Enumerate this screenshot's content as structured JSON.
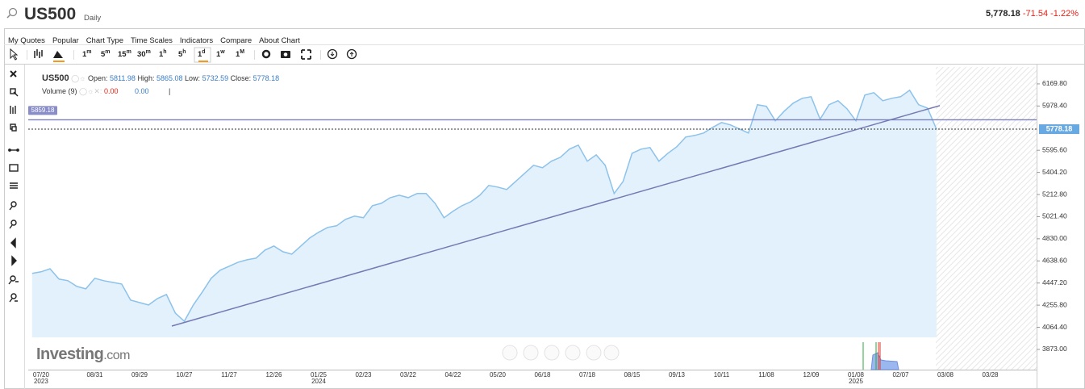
{
  "header": {
    "symbol": "US500",
    "interval": "Daily",
    "price": "5,778.18",
    "change": "-71.54",
    "change_pct": "-1.22%"
  },
  "menu": [
    "My Quotes",
    "Popular",
    "Chart Type",
    "Time Scales",
    "Indicators",
    "Compare",
    "About Chart"
  ],
  "toolbar": {
    "intervals": [
      {
        "n": "1",
        "u": "m"
      },
      {
        "n": "5",
        "u": "m"
      },
      {
        "n": "15",
        "u": "m"
      },
      {
        "n": "30",
        "u": "m"
      },
      {
        "n": "1",
        "u": "h"
      },
      {
        "n": "5",
        "u": "h"
      },
      {
        "n": "1",
        "u": "d"
      },
      {
        "n": "1",
        "u": "w"
      },
      {
        "n": "1",
        "u": "M"
      }
    ]
  },
  "legend": {
    "symbol": "US500",
    "open_label": "Open:",
    "open": "5811.98",
    "high_label": "High:",
    "high": "5865.08",
    "low_label": "Low:",
    "low": "5732.59",
    "close_label": "Close:",
    "close": "5778.18",
    "volume_label": "Volume (9)",
    "volume_a": "0.00",
    "volume_b": "0.00",
    "cursor": "|"
  },
  "logo": {
    "name": "Investing",
    "suffix": ".com"
  },
  "chart_data": {
    "type": "area",
    "categories": [
      null,
      "07/20\n2023",
      null,
      null,
      null,
      null,
      null,
      "08/31",
      null,
      null,
      null,
      null,
      "09/29",
      null,
      null,
      null,
      null,
      "10/27",
      null,
      null,
      null,
      null,
      "11/27",
      null,
      null,
      null,
      null,
      "12/26",
      null,
      null,
      null,
      null,
      "01/25\n2024",
      null,
      null,
      null,
      null,
      "02/23",
      null,
      null,
      null,
      null,
      "03/22",
      null,
      null,
      null,
      null,
      "04/22",
      null,
      null,
      null,
      null,
      "05/20",
      null,
      null,
      null,
      null,
      "06/18",
      null,
      null,
      null,
      null,
      "07/18",
      null,
      null,
      null,
      null,
      "08/15",
      null,
      null,
      null,
      null,
      "09/13",
      null,
      null,
      null,
      null,
      "10/11",
      null,
      null,
      null,
      null,
      "11/08",
      null,
      null,
      null,
      null,
      "12/09",
      null,
      null,
      null,
      null,
      "01/08\n2025",
      null,
      null,
      null,
      null,
      "02/07",
      null,
      null,
      null,
      null,
      "03/08",
      null,
      null,
      null,
      null,
      "03/28"
    ],
    "values": [
      4530,
      4544,
      4571,
      4481,
      4467,
      4418,
      4397,
      4488,
      4467,
      4453,
      4439,
      4299,
      4278,
      4257,
      4313,
      4348,
      4187,
      4117,
      4257,
      4369,
      4488,
      4558,
      4592,
      4627,
      4648,
      4662,
      4732,
      4767,
      4718,
      4697,
      4767,
      4837,
      4886,
      4928,
      4942,
      4998,
      5026,
      5012,
      5116,
      5137,
      5186,
      5207,
      5186,
      5221,
      5221,
      5137,
      5012,
      5068,
      5116,
      5151,
      5207,
      5291,
      5277,
      5256,
      5326,
      5396,
      5466,
      5445,
      5501,
      5535,
      5605,
      5640,
      5501,
      5556,
      5466,
      5221,
      5326,
      5570,
      5605,
      5619,
      5501,
      5570,
      5626,
      5710,
      5724,
      5745,
      5794,
      5836,
      5815,
      5780,
      5745,
      5990,
      5976,
      5850,
      5934,
      6003,
      6045,
      6059,
      5864,
      5990,
      6024,
      5955,
      5850,
      6073,
      6094,
      6024,
      6045,
      6059,
      6115,
      5990,
      5960,
      5778.18,
      null,
      null,
      null,
      null,
      null,
      null
    ],
    "color": "#8dc2ea",
    "fill": "#e2f1fc",
    "ylim": [
      3698,
      6316
    ],
    "yticks": [
      {
        "value": 3873,
        "label": "3873.00"
      },
      {
        "value": 4064.4,
        "label": "4064.40"
      },
      {
        "value": 4255.8,
        "label": "4255.80"
      },
      {
        "value": 4447.2,
        "label": "4447.20"
      },
      {
        "value": 4638.6,
        "label": "4638.60"
      },
      {
        "value": 4830,
        "label": "4830.00"
      },
      {
        "value": 5021.4,
        "label": "5021.40"
      },
      {
        "value": 5212.8,
        "label": "5212.80"
      },
      {
        "value": 5404.2,
        "label": "5404.20"
      },
      {
        "value": 5595.6,
        "label": "5595.60"
      },
      {
        "value": 5978.4,
        "label": "5978.40"
      },
      {
        "value": 6169.8,
        "label": "6169.80"
      }
    ],
    "hline": 5859.18,
    "hline_color": "#7b7fba",
    "trendline": {
      "start": 4075,
      "end": 5982
    },
    "trendline_color": "#7579b4"
  }
}
